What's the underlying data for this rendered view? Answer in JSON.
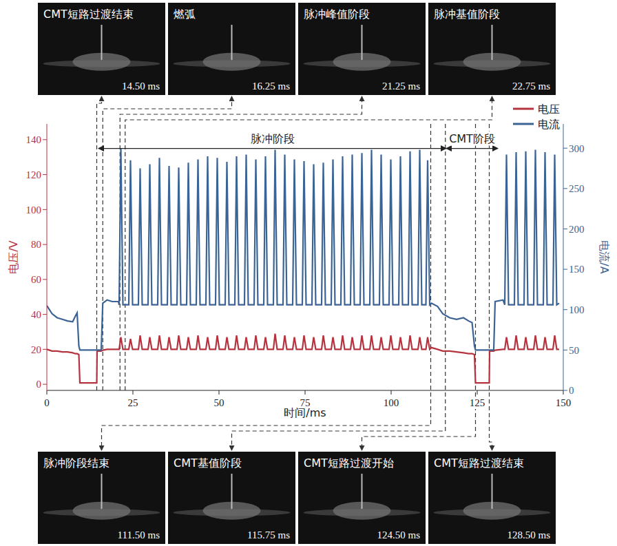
{
  "chart_data": {
    "type": "line",
    "x_label": "时间/ms",
    "y_label": "电压/V",
    "y2_label": "电流/A",
    "xlim": [
      0,
      150
    ],
    "xticks": [
      0,
      25,
      50,
      75,
      100,
      125,
      150
    ],
    "ylim": [
      -3.5,
      149
    ],
    "yticks": [
      0,
      20,
      40,
      60,
      80,
      100,
      120,
      140
    ],
    "y2lim": [
      0,
      330
    ],
    "y2ticks": [
      0,
      50,
      100,
      150,
      200,
      250,
      300
    ],
    "legend": "top-right",
    "x": [
      0,
      1.5,
      3,
      4.5,
      6,
      7.5,
      8.3,
      8.8,
      9.3,
      9.6,
      14.5,
      14.6,
      15.8,
      16.25,
      17.5,
      19,
      20.8,
      21,
      21.5,
      22.1,
      23.8,
      24.3,
      24.9,
      26.6,
      27.1,
      27.7,
      29.4,
      29.9,
      30.5,
      32.2,
      32.7,
      33.3,
      35,
      35.5,
      36.1,
      37.8,
      38.3,
      38.9,
      40.6,
      41.1,
      41.7,
      43.4,
      43.9,
      44.5,
      46.2,
      46.7,
      47.3,
      49,
      49.5,
      50.1,
      51.8,
      52.3,
      52.9,
      54.6,
      55.1,
      55.7,
      57.4,
      57.9,
      58.5,
      60.2,
      60.7,
      61.3,
      63,
      63.5,
      64.1,
      65.8,
      66.3,
      66.9,
      68.6,
      69.1,
      69.7,
      71.4,
      71.9,
      72.5,
      74.2,
      74.7,
      75.3,
      77,
      77.5,
      78.1,
      79.8,
      80.3,
      80.9,
      82.6,
      83.1,
      83.7,
      85.4,
      85.9,
      86.5,
      88.2,
      88.7,
      89.3,
      91,
      91.5,
      92.1,
      93.8,
      94.3,
      94.9,
      96.6,
      97.1,
      97.7,
      99.4,
      99.9,
      100.5,
      102.2,
      102.7,
      103.3,
      105,
      105.5,
      106.1,
      107.8,
      108.3,
      108.9,
      110.1,
      110.6,
      111.2,
      111.7,
      113.5,
      115,
      117,
      119,
      121,
      122.5,
      123.5,
      124.2,
      124.5,
      128.5,
      128.6,
      129.8,
      130.2,
      132.5,
      133,
      133.5,
      134.1,
      135.8,
      136.3,
      136.9,
      138.6,
      139.1,
      139.7,
      141.4,
      141.9,
      142.5,
      144.2,
      144.7,
      145.3,
      147,
      147.5,
      148.1,
      148.8
    ],
    "series": [
      {
        "name": "电压",
        "color": "#b5333e",
        "values": [
          20,
          19,
          19,
          18.5,
          18.5,
          18,
          17.5,
          17.5,
          17,
          0.8,
          0.8,
          19,
          19,
          19.5,
          20,
          20,
          20,
          20,
          27,
          20,
          20,
          26,
          20,
          20,
          28,
          20,
          20,
          27,
          20,
          20,
          28,
          20,
          20,
          27,
          20,
          20,
          28,
          20,
          20,
          27,
          20,
          20,
          28,
          20,
          20,
          27,
          20,
          20,
          28,
          20,
          20,
          27,
          20,
          20,
          28,
          20,
          20,
          27,
          20,
          20,
          28,
          20,
          20,
          27,
          20,
          20,
          29,
          20,
          20,
          28,
          20,
          20,
          27,
          20,
          20,
          28,
          20,
          20,
          27,
          20,
          20,
          28,
          20,
          20,
          27,
          20,
          20,
          28,
          20,
          20,
          27,
          20,
          20,
          28,
          20,
          20,
          28,
          20,
          20,
          27,
          20,
          20,
          28,
          20,
          20,
          27,
          20,
          20,
          28,
          20,
          20,
          27,
          20,
          20,
          27,
          20,
          21,
          20,
          19,
          19,
          18.5,
          18,
          17.5,
          17.5,
          17,
          0.8,
          0.8,
          19,
          19,
          19.5,
          20,
          20,
          27,
          20,
          20,
          28,
          20,
          20,
          27,
          20,
          20,
          28,
          20,
          20,
          27,
          20,
          20,
          28,
          20,
          20
        ]
      },
      {
        "name": "电流",
        "color": "#3b6394",
        "axis": "y2",
        "values": [
          105,
          95,
          90,
          88,
          86,
          85,
          92,
          96,
          55,
          50,
          50,
          50,
          50,
          108,
          112,
          110,
          110,
          106,
          300,
          106,
          106,
          285,
          106,
          106,
          275,
          106,
          106,
          280,
          106,
          106,
          288,
          106,
          106,
          278,
          106,
          106,
          276,
          106,
          106,
          282,
          106,
          106,
          286,
          106,
          106,
          290,
          106,
          106,
          288,
          106,
          106,
          283,
          106,
          106,
          290,
          106,
          106,
          292,
          106,
          106,
          286,
          106,
          106,
          290,
          106,
          106,
          298,
          106,
          106,
          292,
          106,
          106,
          286,
          106,
          106,
          284,
          106,
          106,
          280,
          106,
          106,
          282,
          106,
          106,
          286,
          106,
          106,
          290,
          106,
          106,
          292,
          106,
          106,
          294,
          106,
          106,
          298,
          106,
          106,
          292,
          106,
          106,
          286,
          106,
          106,
          290,
          106,
          106,
          296,
          106,
          106,
          298,
          106,
          106,
          285,
          106,
          108,
          104,
          95,
          90,
          88,
          90,
          86,
          84,
          55,
          50,
          50,
          50,
          50,
          110,
          112,
          106,
          292,
          106,
          106,
          295,
          106,
          106,
          296,
          106,
          106,
          298,
          106,
          106,
          295,
          106,
          106,
          292,
          106,
          108
        ]
      }
    ],
    "annotations": [
      {
        "text": "脉冲阶段",
        "x_start": 15,
        "x_end": 116,
        "y": 135
      },
      {
        "text": "CMT阶段",
        "x_start": 116,
        "x_end": 131,
        "y": 135
      }
    ]
  },
  "frames": {
    "top": [
      {
        "label": "CMT短路过渡结束",
        "time": 14.5,
        "time_label": "14.50 ms"
      },
      {
        "label": "燃弧",
        "time": 16.25,
        "time_label": "16.25 ms"
      },
      {
        "label": "脉冲峰值阶段",
        "time": 21.25,
        "time_label": "21.25 ms"
      },
      {
        "label": "脉冲基值阶段",
        "time": 22.75,
        "time_label": "22.75 ms"
      }
    ],
    "bottom": [
      {
        "label": "脉冲阶段结束",
        "time": 111.5,
        "time_label": "111.50 ms"
      },
      {
        "label": "CMT基值阶段",
        "time": 115.75,
        "time_label": "115.75 ms"
      },
      {
        "label": "CMT短路过渡开始",
        "time": 124.5,
        "time_label": "124.50 ms"
      },
      {
        "label": "CMT短路过渡结束",
        "time": 128.5,
        "time_label": "128.50 ms"
      }
    ]
  }
}
